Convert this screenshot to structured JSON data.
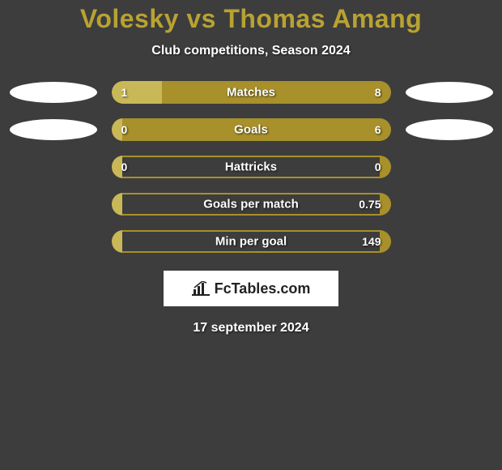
{
  "title": "Volesky vs Thomas Amang",
  "subtitle": "Club competitions, Season 2024",
  "footer_date": "17 september 2024",
  "logo_text": "FcTables.com",
  "colors": {
    "background": "#3d3d3d",
    "accent": "#b8a232",
    "title": "#b8a232",
    "text_light": "#ffffff",
    "bar_right": "#a8902a",
    "bar_left": "#c9b857",
    "bar_outline": "#a8902a",
    "ellipse": "#ffffff"
  },
  "stats": [
    {
      "label": "Matches",
      "left_value": "1",
      "right_value": "8",
      "left_pct": 18,
      "right_pct": 82,
      "show_left_ellipse": true,
      "show_right_ellipse": true
    },
    {
      "label": "Goals",
      "left_value": "0",
      "right_value": "6",
      "left_pct": 4,
      "right_pct": 96,
      "show_left_ellipse": true,
      "show_right_ellipse": true
    },
    {
      "label": "Hattricks",
      "left_value": "0",
      "right_value": "0",
      "left_pct": 4,
      "right_pct": 4,
      "show_left_ellipse": false,
      "show_right_ellipse": false
    },
    {
      "label": "Goals per match",
      "left_value": "",
      "right_value": "0.75",
      "left_pct": 4,
      "right_pct": 4,
      "show_left_ellipse": false,
      "show_right_ellipse": false
    },
    {
      "label": "Min per goal",
      "left_value": "",
      "right_value": "149",
      "left_pct": 4,
      "right_pct": 4,
      "show_left_ellipse": false,
      "show_right_ellipse": false
    }
  ]
}
